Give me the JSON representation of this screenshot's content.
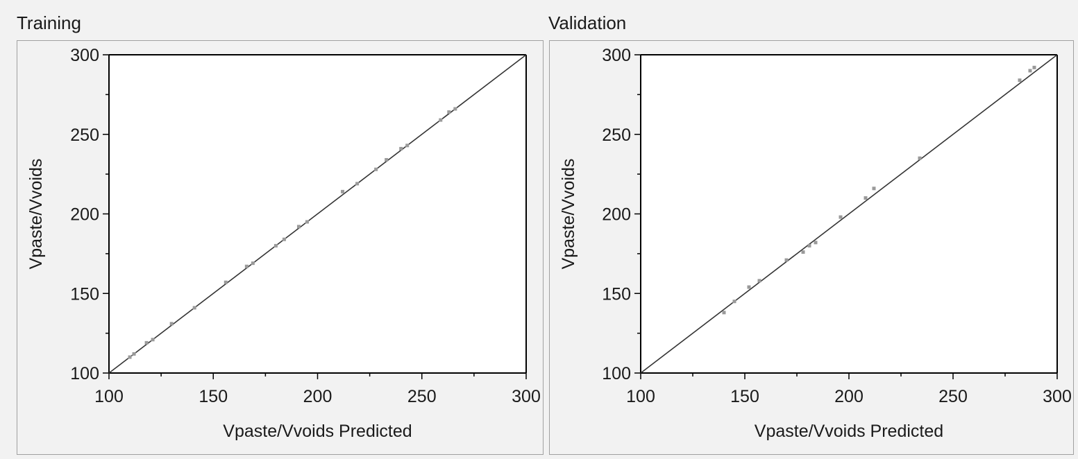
{
  "panels": {
    "training": {
      "title": "Training"
    },
    "validation": {
      "title": "Validation"
    }
  },
  "colors": {
    "axis": "#000000",
    "diagonal": "#333333",
    "points": "#9a9a9a",
    "text": "#1a1a1a"
  },
  "chart_data": [
    {
      "type": "scatter",
      "title": "Training",
      "xlabel": "Vpaste/Vvoids Predicted",
      "ylabel": "Vpaste/Vvoids",
      "xlim": [
        100,
        300
      ],
      "ylim": [
        100,
        300
      ],
      "xticks": [
        100,
        150,
        200,
        250,
        300
      ],
      "yticks": [
        100,
        150,
        200,
        250,
        300
      ],
      "grid": false,
      "reference_line": "y = x",
      "points": [
        {
          "x": 110,
          "y": 110
        },
        {
          "x": 112,
          "y": 112
        },
        {
          "x": 118,
          "y": 119
        },
        {
          "x": 121,
          "y": 121
        },
        {
          "x": 130,
          "y": 131
        },
        {
          "x": 141,
          "y": 141
        },
        {
          "x": 156,
          "y": 157
        },
        {
          "x": 166,
          "y": 167
        },
        {
          "x": 169,
          "y": 169
        },
        {
          "x": 180,
          "y": 180
        },
        {
          "x": 184,
          "y": 184
        },
        {
          "x": 191,
          "y": 192
        },
        {
          "x": 195,
          "y": 195
        },
        {
          "x": 212,
          "y": 214
        },
        {
          "x": 219,
          "y": 219
        },
        {
          "x": 228,
          "y": 228
        },
        {
          "x": 233,
          "y": 234
        },
        {
          "x": 240,
          "y": 241
        },
        {
          "x": 243,
          "y": 243
        },
        {
          "x": 259,
          "y": 259
        },
        {
          "x": 263,
          "y": 264
        },
        {
          "x": 266,
          "y": 266
        }
      ]
    },
    {
      "type": "scatter",
      "title": "Validation",
      "xlabel": "Vpaste/Vvoids Predicted",
      "ylabel": "Vpaste/Vvoids",
      "xlim": [
        100,
        300
      ],
      "ylim": [
        100,
        300
      ],
      "xticks": [
        100,
        150,
        200,
        250,
        300
      ],
      "yticks": [
        100,
        150,
        200,
        250,
        300
      ],
      "grid": false,
      "reference_line": "y = x",
      "points": [
        {
          "x": 140,
          "y": 138
        },
        {
          "x": 145,
          "y": 145
        },
        {
          "x": 152,
          "y": 154
        },
        {
          "x": 157,
          "y": 158
        },
        {
          "x": 170,
          "y": 171
        },
        {
          "x": 178,
          "y": 176
        },
        {
          "x": 181,
          "y": 180
        },
        {
          "x": 184,
          "y": 182
        },
        {
          "x": 196,
          "y": 198
        },
        {
          "x": 208,
          "y": 210
        },
        {
          "x": 212,
          "y": 216
        },
        {
          "x": 234,
          "y": 235
        },
        {
          "x": 282,
          "y": 284
        },
        {
          "x": 287,
          "y": 290
        },
        {
          "x": 289,
          "y": 292
        }
      ]
    }
  ]
}
